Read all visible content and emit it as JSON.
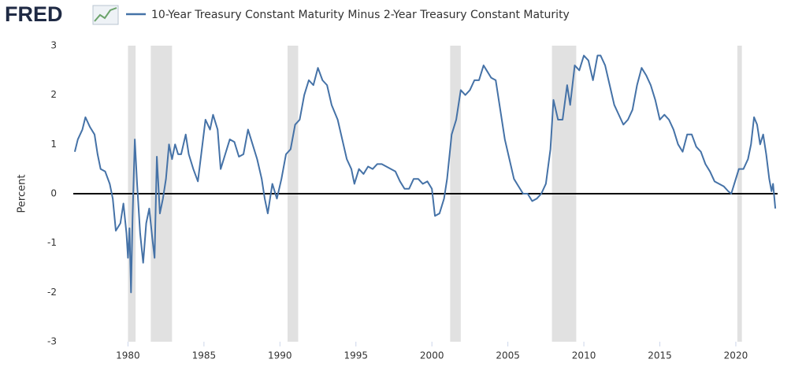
{
  "chart_data": {
    "type": "line",
    "logo": "FRED",
    "y_label": "Percent",
    "xlim": [
      1976.4,
      2022.75
    ],
    "xticks": [
      1980,
      1985,
      1990,
      1995,
      2000,
      2005,
      2010,
      2015,
      2020
    ],
    "ylim": [
      -3,
      3
    ],
    "yticks": [
      -3,
      -2,
      -1,
      0,
      1,
      2,
      3
    ],
    "grid": false,
    "baseline": 0,
    "recession_color": "#e1e1e1",
    "recessions": [
      [
        1980.0,
        1980.5
      ],
      [
        1981.5,
        1982.9
      ],
      [
        1990.5,
        1991.2
      ],
      [
        2001.2,
        2001.9
      ],
      [
        2007.9,
        2009.5
      ],
      [
        2020.1,
        2020.4
      ]
    ],
    "x": [
      1976.5,
      1976.7,
      1977.0,
      1977.2,
      1977.5,
      1977.8,
      1978.0,
      1978.2,
      1978.5,
      1978.8,
      1979.0,
      1979.2,
      1979.5,
      1979.7,
      1979.9,
      1980.0,
      1980.1,
      1980.2,
      1980.3,
      1980.45,
      1980.6,
      1980.8,
      1981.0,
      1981.2,
      1981.4,
      1981.6,
      1981.75,
      1981.9,
      1982.1,
      1982.3,
      1982.5,
      1982.7,
      1982.9,
      1983.1,
      1983.3,
      1983.5,
      1983.8,
      1984.0,
      1984.3,
      1984.6,
      1984.9,
      1985.1,
      1985.4,
      1985.6,
      1985.9,
      1986.1,
      1986.4,
      1986.7,
      1987.0,
      1987.3,
      1987.6,
      1987.9,
      1988.2,
      1988.5,
      1988.8,
      1989.0,
      1989.2,
      1989.5,
      1989.8,
      1990.1,
      1990.4,
      1990.7,
      1991.0,
      1991.3,
      1991.6,
      1991.9,
      1992.2,
      1992.5,
      1992.8,
      1993.1,
      1993.4,
      1993.8,
      1994.1,
      1994.4,
      1994.7,
      1994.9,
      1995.2,
      1995.5,
      1995.8,
      1996.1,
      1996.4,
      1996.7,
      1997.0,
      1997.3,
      1997.6,
      1997.9,
      1998.2,
      1998.5,
      1998.8,
      1999.1,
      1999.4,
      1999.7,
      2000.0,
      2000.2,
      2000.5,
      2000.8,
      2001.0,
      2001.3,
      2001.6,
      2001.9,
      2002.2,
      2002.5,
      2002.8,
      2003.1,
      2003.4,
      2003.6,
      2003.9,
      2004.2,
      2004.5,
      2004.8,
      2005.1,
      2005.4,
      2005.7,
      2006.0,
      2006.3,
      2006.6,
      2006.9,
      2007.2,
      2007.5,
      2007.8,
      2008.0,
      2008.3,
      2008.6,
      2008.9,
      2009.1,
      2009.4,
      2009.7,
      2010.0,
      2010.3,
      2010.6,
      2010.9,
      2011.1,
      2011.4,
      2011.7,
      2012.0,
      2012.3,
      2012.6,
      2012.9,
      2013.2,
      2013.5,
      2013.8,
      2014.1,
      2014.4,
      2014.7,
      2015.0,
      2015.3,
      2015.6,
      2015.9,
      2016.2,
      2016.5,
      2016.8,
      2017.1,
      2017.4,
      2017.7,
      2018.0,
      2018.3,
      2018.6,
      2018.9,
      2019.2,
      2019.5,
      2019.7,
      2019.9,
      2020.2,
      2020.5,
      2020.8,
      2021.0,
      2021.2,
      2021.4,
      2021.6,
      2021.8,
      2022.0,
      2022.2,
      2022.35,
      2022.45,
      2022.6
    ],
    "series": [
      {
        "name": "10-Year Treasury Constant Maturity Minus 2-Year Treasury Constant Maturity",
        "color": "#4572a7",
        "values": [
          0.85,
          1.1,
          1.3,
          1.55,
          1.35,
          1.2,
          0.8,
          0.5,
          0.45,
          0.2,
          -0.1,
          -0.75,
          -0.6,
          -0.2,
          -0.8,
          -1.3,
          -0.7,
          -2.0,
          -0.5,
          1.1,
          0.2,
          -0.8,
          -1.4,
          -0.6,
          -0.3,
          -0.9,
          -1.3,
          0.75,
          -0.4,
          -0.1,
          0.3,
          1.0,
          0.7,
          1.0,
          0.8,
          0.8,
          1.2,
          0.8,
          0.5,
          0.25,
          1.0,
          1.5,
          1.3,
          1.6,
          1.3,
          0.5,
          0.8,
          1.1,
          1.05,
          0.75,
          0.8,
          1.3,
          1.0,
          0.7,
          0.3,
          -0.1,
          -0.4,
          0.2,
          -0.1,
          0.3,
          0.8,
          0.9,
          1.4,
          1.5,
          2.0,
          2.3,
          2.2,
          2.55,
          2.3,
          2.2,
          1.8,
          1.5,
          1.1,
          0.7,
          0.5,
          0.2,
          0.5,
          0.4,
          0.55,
          0.5,
          0.6,
          0.6,
          0.55,
          0.5,
          0.45,
          0.25,
          0.1,
          0.1,
          0.3,
          0.3,
          0.2,
          0.25,
          0.1,
          -0.45,
          -0.4,
          -0.1,
          0.3,
          1.2,
          1.5,
          2.1,
          2.0,
          2.1,
          2.3,
          2.3,
          2.6,
          2.5,
          2.35,
          2.3,
          1.7,
          1.1,
          0.7,
          0.3,
          0.15,
          0.0,
          0.0,
          -0.15,
          -0.1,
          0.0,
          0.2,
          0.9,
          1.9,
          1.5,
          1.5,
          2.2,
          1.8,
          2.6,
          2.5,
          2.8,
          2.7,
          2.3,
          2.8,
          2.8,
          2.6,
          2.2,
          1.8,
          1.6,
          1.4,
          1.5,
          1.7,
          2.2,
          2.55,
          2.4,
          2.2,
          1.9,
          1.5,
          1.6,
          1.5,
          1.3,
          1.0,
          0.85,
          1.2,
          1.2,
          0.95,
          0.85,
          0.6,
          0.45,
          0.25,
          0.2,
          0.15,
          0.05,
          0.0,
          0.2,
          0.5,
          0.5,
          0.7,
          1.0,
          1.55,
          1.4,
          1.0,
          1.2,
          0.8,
          0.3,
          0.05,
          0.2,
          -0.3
        ]
      }
    ]
  }
}
